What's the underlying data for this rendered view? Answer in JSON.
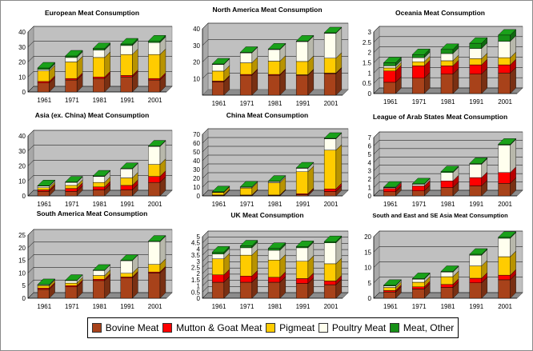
{
  "legend": [
    {
      "name": "Bovine Meat",
      "color": "#a8421a"
    },
    {
      "name": "Mutton & Goat Meat",
      "color": "#ff0000"
    },
    {
      "name": "Pigmeat",
      "color": "#ffcc00"
    },
    {
      "name": "Poultry Meat",
      "color": "#ffffee"
    },
    {
      "name": "Meat, Other",
      "color": "#179017"
    }
  ],
  "chart_data": [
    {
      "type": "bar",
      "stacked": true,
      "title": "European Meat Consumption",
      "categories": [
        "1961",
        "1971",
        "1981",
        "1991",
        "2001"
      ],
      "ylim": [
        0,
        40
      ],
      "yticks": [
        0,
        10,
        20,
        30,
        40
      ],
      "series": [
        {
          "name": "Bovine Meat",
          "values": [
            6,
            8,
            9,
            10,
            8
          ]
        },
        {
          "name": "Mutton & Goat Meat",
          "values": [
            1,
            1,
            1,
            1,
            1
          ]
        },
        {
          "name": "Pigmeat",
          "values": [
            7,
            11,
            13,
            14,
            16
          ]
        },
        {
          "name": "Poultry Meat",
          "values": [
            1,
            3,
            5,
            6,
            8
          ]
        },
        {
          "name": "Meat, Other",
          "values": [
            1,
            1,
            1,
            1,
            1
          ]
        }
      ]
    },
    {
      "type": "bar",
      "stacked": true,
      "title": "North America Meat Consumption",
      "categories": [
        "1961",
        "1971",
        "1981",
        "1991",
        "2001"
      ],
      "ylim": [
        0,
        40
      ],
      "yticks": [
        10,
        20,
        30,
        40
      ],
      "series": [
        {
          "name": "Bovine Meat",
          "values": [
            8,
            12,
            12,
            12,
            13
          ]
        },
        {
          "name": "Mutton & Goat Meat",
          "values": [
            0.5,
            0.5,
            0.5,
            0.3,
            0.3
          ]
        },
        {
          "name": "Pigmeat",
          "values": [
            6,
            7,
            8,
            8,
            9
          ]
        },
        {
          "name": "Poultry Meat",
          "values": [
            4,
            6,
            7,
            12,
            15
          ]
        },
        {
          "name": "Meat, Other",
          "values": [
            0.3,
            0.3,
            0.3,
            0.3,
            0.3
          ]
        }
      ]
    },
    {
      "type": "bar",
      "stacked": true,
      "title": "Oceania Meat Consumption",
      "categories": [
        "1961",
        "1971",
        "1981",
        "1991",
        "2001"
      ],
      "ylim": [
        0,
        3
      ],
      "yticks": [
        0,
        0.5,
        1,
        1.5,
        2,
        2.5,
        3
      ],
      "series": [
        {
          "name": "Bovine Meat",
          "values": [
            0.55,
            0.75,
            0.95,
            0.95,
            1.0
          ]
        },
        {
          "name": "Mutton & Goat Meat",
          "values": [
            0.55,
            0.6,
            0.4,
            0.45,
            0.4
          ]
        },
        {
          "name": "Pigmeat",
          "values": [
            0.15,
            0.2,
            0.25,
            0.3,
            0.35
          ]
        },
        {
          "name": "Poultry Meat",
          "values": [
            0.1,
            0.2,
            0.35,
            0.5,
            0.8
          ]
        },
        {
          "name": "Meat, Other",
          "values": [
            0.15,
            0.15,
            0.2,
            0.25,
            0.3
          ]
        }
      ]
    },
    {
      "type": "bar",
      "stacked": true,
      "title": "Asia (ex. China) Meat Consumption",
      "categories": [
        "1961",
        "1971",
        "1981",
        "1991",
        "2001"
      ],
      "ylim": [
        0,
        40
      ],
      "yticks": [
        0,
        10,
        20,
        30,
        40
      ],
      "series": [
        {
          "name": "Bovine Meat",
          "values": [
            3,
            3,
            4,
            4,
            9
          ]
        },
        {
          "name": "Mutton & Goat Meat",
          "values": [
            1,
            2,
            2,
            3,
            4
          ]
        },
        {
          "name": "Pigmeat",
          "values": [
            1.5,
            2,
            3,
            5,
            8
          ]
        },
        {
          "name": "Poultry Meat",
          "values": [
            1,
            2,
            4,
            6,
            12
          ]
        },
        {
          "name": "Meat, Other",
          "values": [
            0.3,
            0.3,
            0.3,
            0.3,
            0.3
          ]
        }
      ]
    },
    {
      "type": "bar",
      "stacked": true,
      "title": "China Meat Consumption",
      "categories": [
        "1961",
        "1971",
        "1981",
        "1991",
        "2001"
      ],
      "ylim": [
        0,
        70
      ],
      "yticks": [
        0,
        10,
        20,
        30,
        40,
        50,
        60,
        70
      ],
      "series": [
        {
          "name": "Bovine Meat",
          "values": [
            0.5,
            0.5,
            0.5,
            1.5,
            5
          ]
        },
        {
          "name": "Mutton & Goat Meat",
          "values": [
            0.5,
            0.5,
            0.5,
            1,
            3
          ]
        },
        {
          "name": "Pigmeat",
          "values": [
            3,
            8,
            14,
            25,
            44
          ]
        },
        {
          "name": "Poultry Meat",
          "values": [
            0.5,
            1,
            1.5,
            4,
            13
          ]
        },
        {
          "name": "Meat, Other",
          "values": [
            0.2,
            0.2,
            0.2,
            0.3,
            0.5
          ]
        }
      ]
    },
    {
      "type": "bar",
      "stacked": true,
      "title": "League of Arab States Meat Consumption",
      "categories": [
        "1961",
        "1971",
        "1981",
        "1991",
        "2001"
      ],
      "ylim": [
        0,
        7
      ],
      "yticks": [
        0,
        1,
        2,
        3,
        4,
        5,
        6,
        7
      ],
      "series": [
        {
          "name": "Bovine Meat",
          "values": [
            0.5,
            0.6,
            1.0,
            1.2,
            1.5
          ]
        },
        {
          "name": "Mutton & Goat Meat",
          "values": [
            0.4,
            0.6,
            0.8,
            1.0,
            1.3
          ]
        },
        {
          "name": "Pigmeat",
          "values": [
            0,
            0,
            0,
            0,
            0
          ]
        },
        {
          "name": "Poultry Meat",
          "values": [
            0.1,
            0.2,
            1.0,
            1.6,
            3.3
          ]
        },
        {
          "name": "Meat, Other",
          "values": [
            0.05,
            0.05,
            0.1,
            0.1,
            0.1
          ]
        }
      ]
    },
    {
      "type": "bar",
      "stacked": true,
      "title": "South America Meat Consumption",
      "categories": [
        "1961",
        "1971",
        "1981",
        "1991",
        "2001"
      ],
      "ylim": [
        0,
        25
      ],
      "yticks": [
        0,
        5,
        10,
        15,
        20,
        25
      ],
      "series": [
        {
          "name": "Bovine Meat",
          "values": [
            3.5,
            4.5,
            7,
            8,
            10
          ]
        },
        {
          "name": "Mutton & Goat Meat",
          "values": [
            0.5,
            0.5,
            0.5,
            0.4,
            0.4
          ]
        },
        {
          "name": "Pigmeat",
          "values": [
            1,
            1,
            1.5,
            1.5,
            3
          ]
        },
        {
          "name": "Poultry Meat",
          "values": [
            0.3,
            1,
            2,
            5,
            9
          ]
        },
        {
          "name": "Meat, Other",
          "values": [
            0.1,
            0.1,
            0.1,
            0.1,
            0.2
          ]
        }
      ]
    },
    {
      "type": "bar",
      "stacked": true,
      "title": "UK Meat Consumption",
      "categories": [
        "1961",
        "1971",
        "1981",
        "1991",
        "2001"
      ],
      "ylim": [
        0,
        5
      ],
      "yticks": [
        0,
        0.5,
        1,
        1.5,
        2,
        2.5,
        3,
        3.5,
        4,
        4.5,
        5
      ],
      "series": [
        {
          "name": "Bovine Meat",
          "values": [
            1.3,
            1.3,
            1.3,
            1.2,
            1.1
          ]
        },
        {
          "name": "Mutton & Goat Meat",
          "values": [
            0.6,
            0.5,
            0.4,
            0.4,
            0.3
          ]
        },
        {
          "name": "Pigmeat",
          "values": [
            1.3,
            1.7,
            1.4,
            1.4,
            1.4
          ]
        },
        {
          "name": "Poultry Meat",
          "values": [
            0.4,
            0.6,
            0.8,
            1.1,
            1.7
          ]
        },
        {
          "name": "Meat, Other",
          "values": [
            0.15,
            0.15,
            0.15,
            0.1,
            0.1
          ]
        }
      ]
    },
    {
      "type": "bar",
      "stacked": true,
      "title": "South and East and SE Asia Meat Consumption",
      "categories": [
        "1961",
        "1971",
        "1981",
        "1991",
        "2001"
      ],
      "ylim": [
        0,
        20
      ],
      "yticks": [
        0,
        5,
        10,
        15,
        20
      ],
      "series": [
        {
          "name": "Bovine Meat",
          "values": [
            2,
            3,
            3.5,
            5,
            6
          ]
        },
        {
          "name": "Mutton & Goat Meat",
          "values": [
            0.5,
            0.7,
            1,
            1.5,
            1.5
          ]
        },
        {
          "name": "Pigmeat",
          "values": [
            1,
            1.5,
            2.5,
            4,
            6
          ]
        },
        {
          "name": "Poultry Meat",
          "values": [
            0.5,
            1,
            1.5,
            3.5,
            6
          ]
        },
        {
          "name": "Meat, Other",
          "values": [
            0.2,
            0.2,
            0.2,
            0.3,
            0.3
          ]
        }
      ]
    }
  ]
}
